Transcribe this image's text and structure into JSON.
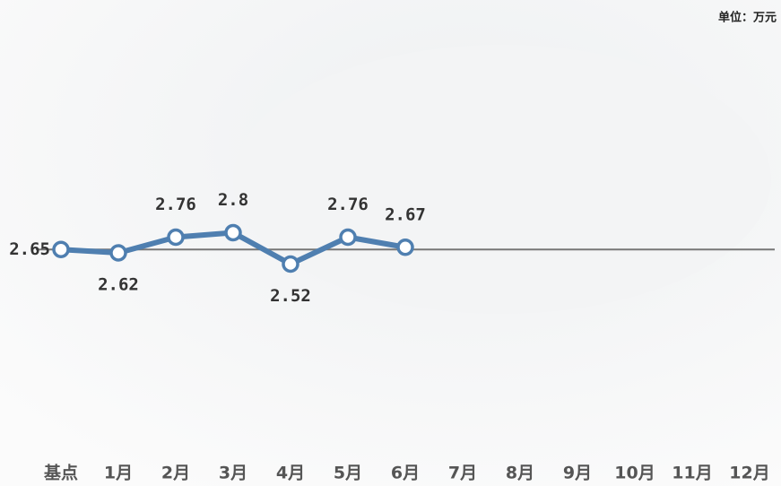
{
  "chart_data": {
    "type": "line",
    "unit_label": "单位：万元",
    "categories": [
      "基点",
      "1月",
      "2月",
      "3月",
      "4月",
      "5月",
      "6月",
      "7月",
      "8月",
      "9月",
      "10月",
      "11月",
      "12月"
    ],
    "series": [
      {
        "color": "#4f7fb0",
        "values": [
          2.65,
          2.62,
          2.76,
          2.8,
          2.52,
          2.76,
          2.67,
          null,
          null,
          null,
          null,
          null,
          null
        ]
      }
    ],
    "ylim": [
      0.9,
      4.5
    ]
  }
}
